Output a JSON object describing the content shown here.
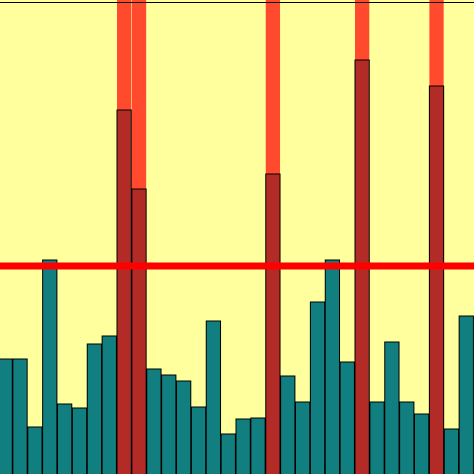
{
  "chart_data": {
    "type": "bar",
    "title": "",
    "xlabel": "",
    "ylabel": "",
    "ylim": [
      0,
      474
    ],
    "grid": false,
    "legend": "none",
    "values": [
      115,
      115,
      47,
      214,
      70,
      66,
      130,
      138,
      364,
      285,
      105,
      99,
      93,
      67,
      153,
      40,
      55,
      56,
      300,
      98,
      72,
      172,
      214,
      112,
      414,
      72,
      132,
      72,
      60,
      388,
      45,
      158
    ],
    "highlighted_indices": [
      8,
      9,
      18,
      24,
      29
    ],
    "highlight_band_top": 474,
    "threshold": 208,
    "colors": {
      "plot_background": "#ffff9e",
      "bar": "#117f80",
      "bar_highlighted": "#b22b26",
      "highlight_band": "#ff4a2e",
      "threshold_line": "#ff0000",
      "bar_edge": "#000000"
    }
  }
}
